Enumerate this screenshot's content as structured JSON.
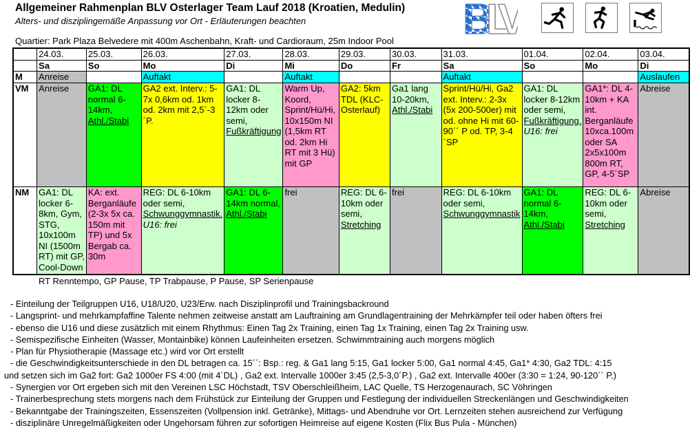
{
  "header": {
    "title": "Allgemeiner Rahmenplan BLV Osterlager Team Lauf 2018 (Kroatien, Medulin)",
    "subtitle": "Alters- und disziplingemäße Anpassung vor Ort - Erläuterungen beachten",
    "quartier": "Quartier: Park Plaza Belvedere mit 400m Aschenbahn, Kraft- und Cardioraum, 25m Indoor Pool",
    "logo": {
      "b": "B",
      "l": "L",
      "v": "V",
      "blue": "#2a6fce"
    },
    "icon_names": [
      "sprinter-icon",
      "runner-icon",
      "steeplechase-icon"
    ]
  },
  "colors": {
    "gray": "#c0c0c0",
    "cyan": "#00ffff",
    "green": "#00ff00",
    "palegreen": "#ccffcc",
    "yellow": "#ffff00",
    "pink": "#ff99cc",
    "white": "#ffffff"
  },
  "table": {
    "dates": [
      "24.03.",
      "25.03.",
      "26.03.",
      "27.03.",
      "28.03.",
      "29.03.",
      "30.03.",
      "31.03.",
      "01.04.",
      "02.04.",
      "03.04."
    ],
    "days": [
      "Sa",
      "So",
      "Mo",
      "Di",
      "Mi",
      "Do",
      "Fr",
      "Sa",
      "So",
      "Mo",
      "Di"
    ],
    "rows": [
      {
        "key": "m",
        "label": "M",
        "cells": [
          {
            "bg": "gray",
            "segments": [
              {
                "text": "Anreise"
              }
            ]
          },
          {
            "bg": "white",
            "segments": []
          },
          {
            "bg": "cyan",
            "segments": [
              {
                "text": "Auftakt"
              }
            ]
          },
          {
            "bg": "white",
            "segments": []
          },
          {
            "bg": "cyan",
            "segments": [
              {
                "text": "Auftakt"
              }
            ]
          },
          {
            "bg": "white",
            "segments": []
          },
          {
            "bg": "white",
            "segments": []
          },
          {
            "bg": "cyan",
            "segments": [
              {
                "text": "Auftakt"
              }
            ]
          },
          {
            "bg": "white",
            "segments": []
          },
          {
            "bg": "white",
            "segments": []
          },
          {
            "bg": "cyan",
            "segments": [
              {
                "text": "Auslaufen"
              }
            ]
          }
        ]
      },
      {
        "key": "vm",
        "label": "VM",
        "cells": [
          {
            "bg": "gray",
            "segments": [
              {
                "text": "Anreise"
              }
            ]
          },
          {
            "bg": "green",
            "segments": [
              {
                "text": "GA1: DL normal 6-14km, "
              },
              {
                "text": "Athl./Stabi",
                "u": true
              }
            ]
          },
          {
            "bg": "yellow",
            "segments": [
              {
                "text": "GA2 ext. Interv.: 5-7x 0,6km od. 1km od. 2km mit 2,5´-3´P."
              }
            ]
          },
          {
            "bg": "palegreen",
            "segments": [
              {
                "text": "GA1: DL locker 8-12km oder semi, "
              },
              {
                "text": "Fußkräftigung",
                "u": true
              }
            ]
          },
          {
            "bg": "pink",
            "segments": [
              {
                "text": "Warm Up, Koord, Sprint/Hü/Hi, 10x150m NI (1,5km RT od. 2km Hi RT mit 3 Hü) mit GP"
              }
            ]
          },
          {
            "bg": "yellow",
            "segments": [
              {
                "text": "GA2: 5km TDL (KLC-Osterlauf)"
              }
            ]
          },
          {
            "bg": "palegreen",
            "segments": [
              {
                "text": "Ga1 lang 10-20km, "
              },
              {
                "text": "Athl./Stabi",
                "u": true
              }
            ]
          },
          {
            "bg": "yellow",
            "segments": [
              {
                "text": "Sprint/Hü/Hi, Ga2 ext. Interv.: 2-3x (5x 200-500er) mit od. ohne Hi mit 60-90´´ P od. TP, 3-4´SP"
              }
            ]
          },
          {
            "bg": "palegreen",
            "segments": [
              {
                "text": "GA1: DL locker 8-12km oder semi, "
              },
              {
                "text": "Fußkräftigung.",
                "u": true
              },
              {
                "text": " "
              },
              {
                "text": "U16: frei",
                "i": true
              }
            ]
          },
          {
            "bg": "pink",
            "segments": [
              {
                "text": "GA1*: DL 4-10km + KA int. Berganläufe 10xca.100m oder SA 2x5x100m 800m RT, GP, 4-5´SP"
              }
            ]
          },
          {
            "bg": "gray",
            "segments": [
              {
                "text": "Abreise"
              }
            ]
          }
        ]
      },
      {
        "key": "nm",
        "label": "NM",
        "cells": [
          {
            "bg": "palegreen",
            "segments": [
              {
                "text": "GA1: DL locker 6-8km, Gym, STG, 10x100m NI (1500m RT) mit GP, Cool-Down"
              }
            ]
          },
          {
            "bg": "pink",
            "segments": [
              {
                "text": "KA: ext. Berganläufe (2-3x 5x ca. 150m mit TP) und 5x Bergab ca. 30m"
              }
            ]
          },
          {
            "bg": "palegreen",
            "segments": [
              {
                "text": "REG: DL 6-10km oder semi, "
              },
              {
                "text": "Schwunggymnastik.",
                "u": true
              },
              {
                "text": " "
              },
              {
                "text": "U16: frei",
                "i": true
              }
            ]
          },
          {
            "bg": "green",
            "segments": [
              {
                "text": "GA1: DL 6-14km normal, "
              },
              {
                "text": "Athl./Stabi",
                "u": true
              }
            ]
          },
          {
            "bg": "gray",
            "segments": [
              {
                "text": "frei"
              }
            ]
          },
          {
            "bg": "palegreen",
            "segments": [
              {
                "text": "REG: DL 6-10km oder semi, "
              },
              {
                "text": "Stretching",
                "u": true
              }
            ]
          },
          {
            "bg": "gray",
            "segments": [
              {
                "text": "frei"
              }
            ]
          },
          {
            "bg": "palegreen",
            "segments": [
              {
                "text": "REG: DL 6-10km oder semi, "
              },
              {
                "text": "Schwunggymnastik",
                "u": true
              }
            ]
          },
          {
            "bg": "green",
            "segments": [
              {
                "text": "GA1: DL normal 6-14km, "
              },
              {
                "text": "Athl./Stabi",
                "u": true
              }
            ]
          },
          {
            "bg": "palegreen",
            "segments": [
              {
                "text": "REG: DL 6-10km oder semi, "
              },
              {
                "text": "Stretching",
                "u": true
              }
            ]
          },
          {
            "bg": "gray",
            "segments": [
              {
                "text": "Abreise"
              }
            ]
          }
        ]
      }
    ]
  },
  "legend": "RT Renntempo, GP Pause, TP Trabpause, P Pause, SP Serienpause",
  "notes": [
    "- Einteilung der Teilgruppen U16, U18/U20, U23/Erw. nach Disziplinprofil und Trainingsbackround",
    "- Langsprint- und mehrkampfaffine Talente nehmen zeitweise anstatt am Lauftraining am Grundlagentraining der Mehrkämpfer teil oder haben öfters frei",
    "- ebenso die U16 und diese zusätzlich mit einem Rhythmus: Einen Tag 2x Training, einen Tag 1x Training, einen Tag 2x Training usw.",
    "- Semispezifische Einheiten (Wasser, Montainbike) können Laufeinheiten ersetzen. Schwimmtraining auch morgens möglich",
    "- Plan für Physiotherapie (Massage etc.) wird vor Ort erstellt",
    "- die Geschwindigkeitsunterschiede in den DL betragen ca. 15´´: Bsp.: reg. & Ga1 lang 5:15, Ga1 locker 5:00, Ga1 normal 4:45, Ga1* 4:30, Ga2 TDL: 4:15",
    "und setzen sich im Ga2 fort: Ga2 1000er FS 4:00 (mit 4´DL) , Ga2 ext. Intervalle 1000er 3:45 (2,5-3,0´P.) , Ga2 ext. Intervalle 400er (3:30 = 1:24, 90-120´´ P.)",
    "- Synergien vor Ort ergeben sich mit den Vereinen LSC Höchstadt, TSV Oberschleißheim, LAC Quelle, TS Herzogenaurach, SC Vöhringen",
    "- Trainerbesprechung stets morgens nach dem Frühstück zur Einteilung der Gruppen und Festlegung der individuellen Streckenlängen und Geschwindigkeiten",
    "- Bekanntgabe der Trainingszeiten, Essenszeiten (Vollpension inkl. Getränke), Mittags- und Abendruhe vor Ort. Lernzeiten stehen ausreichend zur Verfügung",
    "- disziplinäre Unregelmäßigkeiten oder Ungehorsam führen zur sofortigen Heimreise auf eigene Kosten (Flix Bus Pula - München)"
  ]
}
